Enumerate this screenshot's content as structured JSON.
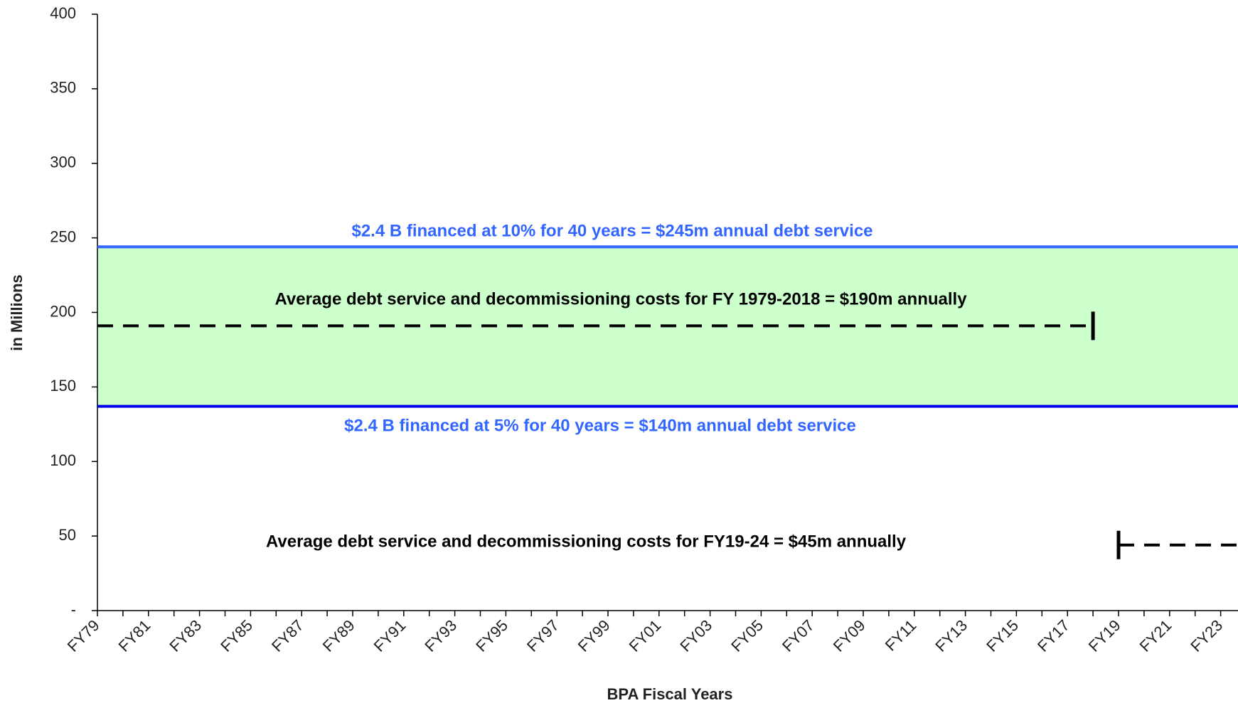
{
  "chart_data": {
    "type": "line",
    "x_label": "BPA Fiscal Years",
    "y_label": "in Millions",
    "categories": [
      "FY79",
      null,
      "FY81",
      null,
      "FY83",
      null,
      "FY85",
      null,
      "FY87",
      null,
      "FY89",
      null,
      "FY91",
      null,
      "FY93",
      null,
      "FY95",
      null,
      "FY97",
      null,
      "FY99",
      null,
      "FY01",
      null,
      "FY03",
      null,
      "FY05",
      null,
      "FY07",
      null,
      "FY09",
      null,
      "FY11",
      null,
      "FY13",
      null,
      "FY15",
      null,
      "FY17",
      null,
      "FY19",
      null,
      "FY21",
      null,
      "FY23",
      null
    ],
    "series": [
      {
        "color": "#3366ff",
        "dash": false,
        "values": [
          244,
          244,
          244,
          244,
          244,
          244,
          244,
          244,
          244,
          244,
          244,
          244,
          244,
          244,
          244,
          244,
          244,
          244,
          244,
          244,
          244,
          244,
          244,
          244,
          244,
          244,
          244,
          244,
          244,
          244,
          244,
          244,
          244,
          244,
          244,
          244,
          244,
          244,
          244,
          244,
          244,
          244,
          244,
          244,
          244,
          244
        ]
      },
      {
        "color": "#0000ee",
        "dash": false,
        "values": [
          137,
          137,
          137,
          137,
          137,
          137,
          137,
          137,
          137,
          137,
          137,
          137,
          137,
          137,
          137,
          137,
          137,
          137,
          137,
          137,
          137,
          137,
          137,
          137,
          137,
          137,
          137,
          137,
          137,
          137,
          137,
          137,
          137,
          137,
          137,
          137,
          137,
          137,
          137,
          137,
          137,
          137,
          137,
          137,
          137,
          137
        ]
      },
      {
        "color": "#000000",
        "dash": true,
        "values": [
          191,
          191,
          191,
          191,
          191,
          191,
          191,
          191,
          191,
          191,
          191,
          191,
          191,
          191,
          191,
          191,
          191,
          191,
          191,
          191,
          191,
          191,
          191,
          191,
          191,
          191,
          191,
          191,
          191,
          191,
          191,
          191,
          191,
          191,
          191,
          191,
          191,
          191,
          191,
          191,
          null,
          null,
          null,
          null,
          null,
          null
        ]
      },
      {
        "color": "#000000",
        "dash": true,
        "values": [
          null,
          null,
          null,
          null,
          null,
          null,
          null,
          null,
          null,
          null,
          null,
          null,
          null,
          null,
          null,
          null,
          null,
          null,
          null,
          null,
          null,
          null,
          null,
          null,
          null,
          null,
          null,
          null,
          null,
          null,
          null,
          null,
          null,
          null,
          null,
          null,
          null,
          null,
          null,
          null,
          44,
          44,
          44,
          44,
          44,
          44
        ]
      }
    ],
    "fill_between": {
      "color": "#ccffcc"
    },
    "annotations": [
      {
        "text": "$2.4 B financed at 10% for 40 years = $245m annual debt service",
        "color": "#3366ff"
      },
      {
        "text": "Average debt service and decommissioning costs for FY 1979-2018 = $190m annually",
        "color": "#000000"
      },
      {
        "text": "$2.4 B financed at 5% for 40 years = $140m annual debt service",
        "color": "#3366ff"
      },
      {
        "text": "Average debt service and decommissioning costs for FY19-24 = $45m annually",
        "color": "#000000"
      }
    ],
    "ylim": [
      0,
      400
    ],
    "yticks": [
      {
        "value": 0,
        "label": "-"
      },
      50,
      100,
      150,
      200,
      250,
      300,
      350,
      400
    ],
    "grid": false
  }
}
